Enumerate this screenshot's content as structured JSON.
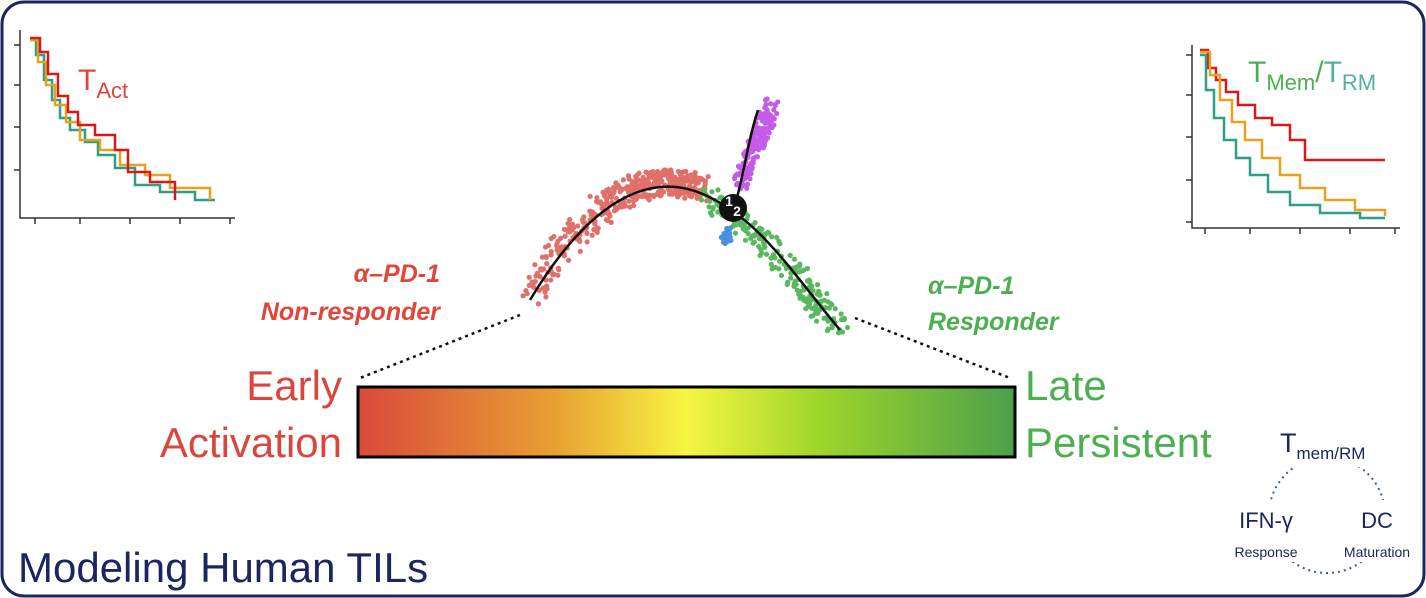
{
  "title": "Modeling Human TILs",
  "left_plot": {
    "label": {
      "main": "T",
      "sub": "Act"
    }
  },
  "right_plot": {
    "label": [
      {
        "main": "T",
        "sub": "Mem"
      },
      "/",
      {
        "main": "T",
        "sub": "RM"
      }
    ]
  },
  "trajectory": {
    "branch_labels": [
      "1",
      "2"
    ],
    "non_responder": {
      "drug": "α–PD-1",
      "label": "Non-responder"
    },
    "responder": {
      "drug": "α–PD-1",
      "label": "Responder"
    }
  },
  "gradient": {
    "start": [
      "Early",
      "Activation"
    ],
    "end": [
      "Late",
      "Persistent"
    ]
  },
  "inset": {
    "title": {
      "main": "T",
      "sub": "mem/RM"
    },
    "nodes": [
      {
        "label": "IFN-γ",
        "sublabel": "Response"
      },
      {
        "label": "DC",
        "sublabel": "Maturation"
      }
    ]
  }
}
